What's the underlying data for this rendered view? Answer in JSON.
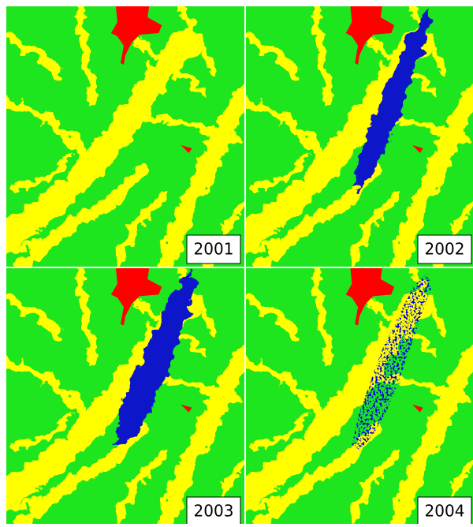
{
  "panels": [
    {
      "label": "2001"
    },
    {
      "label": "2002"
    },
    {
      "label": "2003"
    },
    {
      "label": "2004"
    }
  ]
}
